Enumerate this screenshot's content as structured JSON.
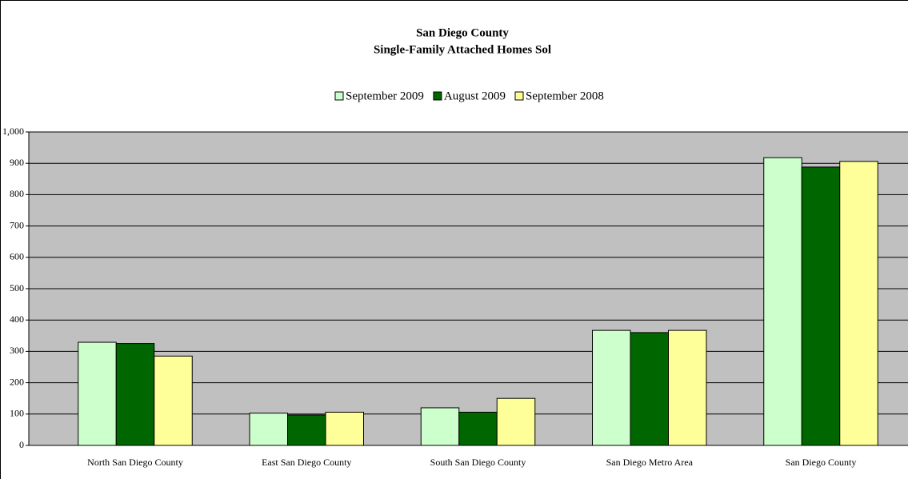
{
  "chart_data": {
    "type": "bar",
    "title": "San Diego County",
    "subtitle": "Single-Family Attached Homes Sol",
    "categories": [
      "North San Diego County",
      "East San Diego County",
      "South San Diego County",
      "San Diego Metro Area",
      "San Diego County"
    ],
    "series": [
      {
        "name": "September 2009",
        "color": "#ccffcc",
        "values": [
          329,
          103,
          120,
          367,
          918
        ]
      },
      {
        "name": "August 2009",
        "color": "#006600",
        "values": [
          325,
          97,
          106,
          360,
          888
        ]
      },
      {
        "name": "September 2008",
        "color": "#ffff99",
        "values": [
          285,
          106,
          150,
          367,
          906
        ]
      }
    ],
    "ylim": [
      0,
      1000
    ],
    "yticks": [
      0,
      100,
      200,
      300,
      400,
      500,
      600,
      700,
      800,
      900,
      {
        "value": 1000,
        "label": "1,000"
      }
    ],
    "grid": true,
    "legend": "top"
  }
}
